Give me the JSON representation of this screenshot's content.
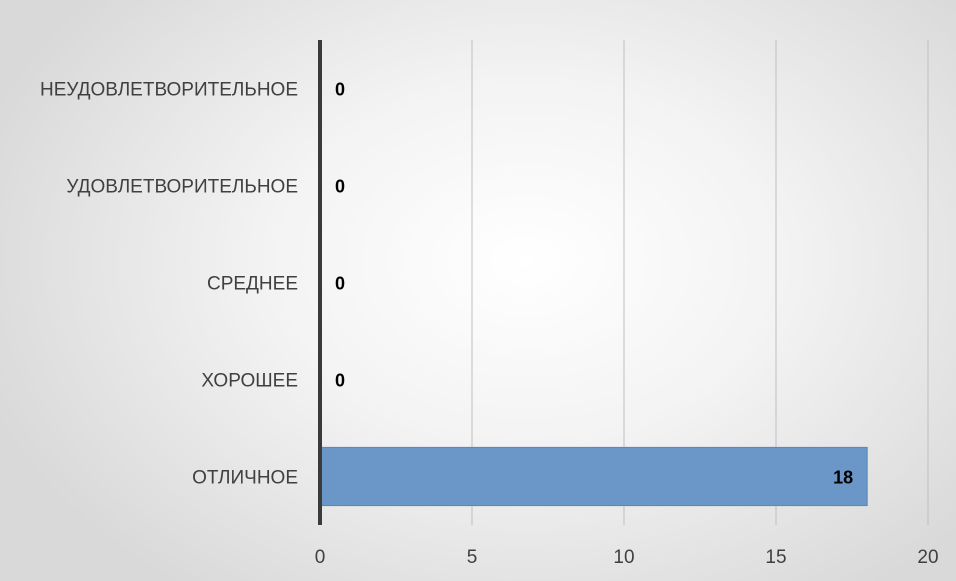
{
  "chart_data": {
    "type": "bar",
    "orientation": "horizontal",
    "categories": [
      "ОТЛИЧНОЕ",
      "ХОРОШЕЕ",
      "СРЕДНЕЕ",
      "УДОВЛЕТВОРИТЕЛЬНОЕ",
      "НЕУДОВЛЕТВОРИТЕЛЬНОЕ"
    ],
    "values": [
      18,
      0,
      0,
      0,
      0
    ],
    "data_labels": [
      "18",
      "0",
      "0",
      "0",
      "0"
    ],
    "xlim": [
      0,
      20
    ],
    "x_ticks": [
      0,
      5,
      10,
      15,
      20
    ],
    "x_tick_labels": [
      "0",
      "5",
      "10",
      "15",
      "20"
    ],
    "grid": "vertical",
    "legend": "none",
    "colors": {
      "bar": "#6a96c8",
      "bar_edge": "#5b87ba",
      "grid": "#bfbfbf",
      "axis": "#3a3a3a"
    }
  }
}
